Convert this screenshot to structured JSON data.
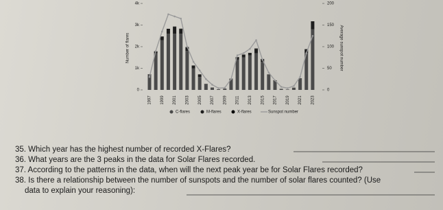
{
  "chart_data": {
    "type": "bar",
    "y_label": "Number of flares",
    "y2_label": "Average sunspot number",
    "categories": [
      "1997",
      null,
      "1999",
      null,
      "2001",
      null,
      "2003",
      null,
      "2005",
      null,
      "2007",
      null,
      "2009",
      null,
      "2011",
      null,
      "2013",
      null,
      "2015",
      null,
      "2017",
      null,
      "2019",
      null,
      "2021",
      null,
      "2023"
    ],
    "series": [
      {
        "name": "C-flares",
        "color": "#4a4a4a",
        "values": [
          700,
          1700,
          2300,
          2600,
          2600,
          2600,
          1800,
          1000,
          600,
          250,
          100,
          30,
          60,
          500,
          1400,
          1500,
          1600,
          1700,
          1300,
          700,
          400,
          50,
          20,
          100,
          500,
          1700,
          2800
        ]
      },
      {
        "name": "M-flares",
        "color": "#1e1e1e",
        "values": [
          20,
          70,
          170,
          210,
          310,
          220,
          160,
          120,
          100,
          20,
          10,
          0,
          0,
          20,
          110,
          130,
          100,
          200,
          130,
          16,
          40,
          0,
          0,
          5,
          30,
          180,
          360
        ]
      },
      {
        "name": "X-flares",
        "color": "#000000",
        "values": [
          1,
          14,
          4,
          17,
          20,
          12,
          20,
          11,
          18,
          4,
          0,
          0,
          0,
          0,
          8,
          7,
          12,
          16,
          2,
          0,
          4,
          0,
          0,
          0,
          2,
          7,
          13
        ]
      },
      {
        "name": "Sunspot number",
        "type": "line",
        "axis": "y2",
        "color": "#9a9a9a",
        "values": [
          30,
          90,
          135,
          175,
          170,
          165,
          100,
          65,
          45,
          25,
          12,
          4,
          5,
          25,
          80,
          85,
          95,
          115,
          70,
          40,
          22,
          7,
          4,
          9,
          30,
          85,
          125
        ]
      }
    ],
    "ylim": [
      0,
      4000
    ],
    "yticks": [
      0,
      {
        "value": 1000,
        "label": "1k"
      },
      {
        "value": 2000,
        "label": "2k"
      },
      {
        "value": 3000,
        "label": "3k"
      },
      {
        "value": 4000,
        "label": "4k"
      }
    ],
    "y2lim": [
      0,
      200
    ],
    "y2ticks": [
      0,
      50,
      100,
      150,
      200
    ]
  },
  "questions": [
    [
      "35. Which year has the highest number of recorded X-Flares?"
    ],
    [
      "36. What years are the 3 peaks in the data for Solar Flares recorded."
    ],
    [
      "37. According to the patterns in the data, when will the next peak year be for Solar Flares recorded?"
    ],
    [
      "38. Is there a relationship between the number of sunspots and the number of solar flares counted? (Use",
      "data to explain your reasoning):"
    ]
  ]
}
